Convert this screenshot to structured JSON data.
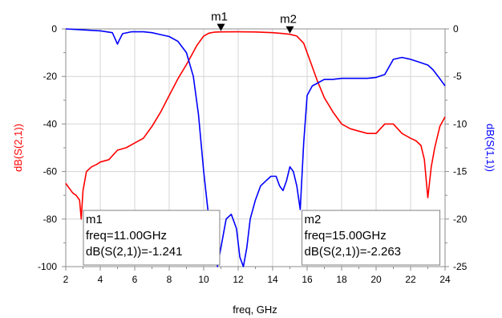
{
  "chart_data": {
    "type": "line",
    "xlabel": "freq, GHz",
    "ylabel_left": "dB(S(2,1))",
    "ylabel_right": "dB(S(1,1))",
    "xlim": [
      2,
      24
    ],
    "ylim_left": [
      -100,
      0
    ],
    "ylim_right": [
      -25,
      0
    ],
    "x_ticks": [
      "2",
      "4",
      "6",
      "8",
      "10",
      "12",
      "14",
      "16",
      "18",
      "20",
      "22",
      "24"
    ],
    "y_left_ticks": [
      "0",
      "-20",
      "-40",
      "-60",
      "-80",
      "-100"
    ],
    "y_right_ticks": [
      "0",
      "-5",
      "-10",
      "-15",
      "-20",
      "-25"
    ],
    "grid": true,
    "colors": {
      "s21": "#ff0000",
      "s11": "#0000ff"
    },
    "series": [
      {
        "name": "dB(S(2,1))",
        "axis": "left",
        "color": "#ff0000",
        "x": [
          2.0,
          2.2,
          2.4,
          2.6,
          2.8,
          2.9,
          3.0,
          3.2,
          3.5,
          3.8,
          4.0,
          4.5,
          5.0,
          5.5,
          6.0,
          6.5,
          7.0,
          7.5,
          8.0,
          8.5,
          9.0,
          9.3,
          9.6,
          10.0,
          10.3,
          10.6,
          11.0,
          12.0,
          13.0,
          14.0,
          14.5,
          15.0,
          15.4,
          15.8,
          16.2,
          16.6,
          17.0,
          17.5,
          18.0,
          18.5,
          19.0,
          19.5,
          20.0,
          20.5,
          21.0,
          21.5,
          22.0,
          22.3,
          22.6,
          22.8,
          23.0,
          23.2,
          23.4,
          23.7,
          24.0
        ],
        "y": [
          -65,
          -67,
          -69,
          -70,
          -72,
          -80,
          -68,
          -60,
          -58,
          -57,
          -56,
          -55,
          -51,
          -50,
          -48,
          -46,
          -41,
          -35,
          -28,
          -21,
          -15,
          -11,
          -7,
          -3,
          -1.8,
          -1.4,
          -1.241,
          -1.2,
          -1.3,
          -1.6,
          -1.9,
          -2.263,
          -3,
          -6,
          -14,
          -22,
          -29,
          -35,
          -40,
          -42,
          -43,
          -44,
          -44,
          -40,
          -40,
          -44,
          -46,
          -47,
          -49,
          -55,
          -71,
          -58,
          -50,
          -41,
          -37
        ]
      },
      {
        "name": "dB(S(1,1))",
        "axis": "right",
        "color": "#0000ff",
        "x": [
          2.0,
          3.0,
          4.0,
          4.7,
          4.9,
          5.0,
          5.1,
          5.3,
          5.8,
          6.5,
          7.0,
          7.5,
          8.0,
          8.5,
          9.0,
          9.4,
          9.7,
          10.0,
          10.3,
          10.6,
          10.8,
          11.0,
          11.3,
          11.6,
          11.9,
          12.1,
          12.3,
          12.5,
          12.7,
          13.0,
          13.3,
          13.6,
          13.9,
          14.2,
          14.4,
          14.6,
          14.8,
          15.0,
          15.2,
          15.4,
          15.6,
          15.8,
          16.0,
          16.3,
          16.6,
          17.0,
          17.5,
          18.0,
          18.5,
          19.0,
          19.5,
          20.0,
          20.5,
          21.0,
          21.5,
          22.0,
          22.5,
          23.0,
          23.3,
          23.6,
          24.0
        ],
        "y": [
          0,
          -0.1,
          -0.2,
          -0.4,
          -1.2,
          -1.6,
          -1.2,
          -0.5,
          -0.3,
          -0.3,
          -0.4,
          -0.6,
          -0.8,
          -1.3,
          -2.5,
          -5,
          -9,
          -15,
          -20,
          -23,
          -25,
          -23,
          -20,
          -19.5,
          -21,
          -24,
          -25,
          -23,
          -20,
          -18,
          -16.5,
          -16,
          -15.5,
          -15.5,
          -16.5,
          -17,
          -16,
          -14.5,
          -15,
          -16.5,
          -19,
          -12,
          -7,
          -6,
          -5.7,
          -5.3,
          -5.3,
          -5.2,
          -5.2,
          -5.2,
          -5.2,
          -5.1,
          -4.8,
          -3.2,
          -3,
          -3.2,
          -3.5,
          -3.8,
          -4.3,
          -5,
          -6
        ]
      }
    ],
    "markers": [
      {
        "name": "m1",
        "freq": 11.0,
        "value": -1.241,
        "lines": [
          "m1",
          "freq=11.00GHz",
          "dB(S(2,1))=-1.241"
        ]
      },
      {
        "name": "m2",
        "freq": 15.0,
        "value": -2.263,
        "lines": [
          "m2",
          "freq=15.00GHz",
          "dB(S(2,1))=-2.263"
        ]
      }
    ]
  }
}
